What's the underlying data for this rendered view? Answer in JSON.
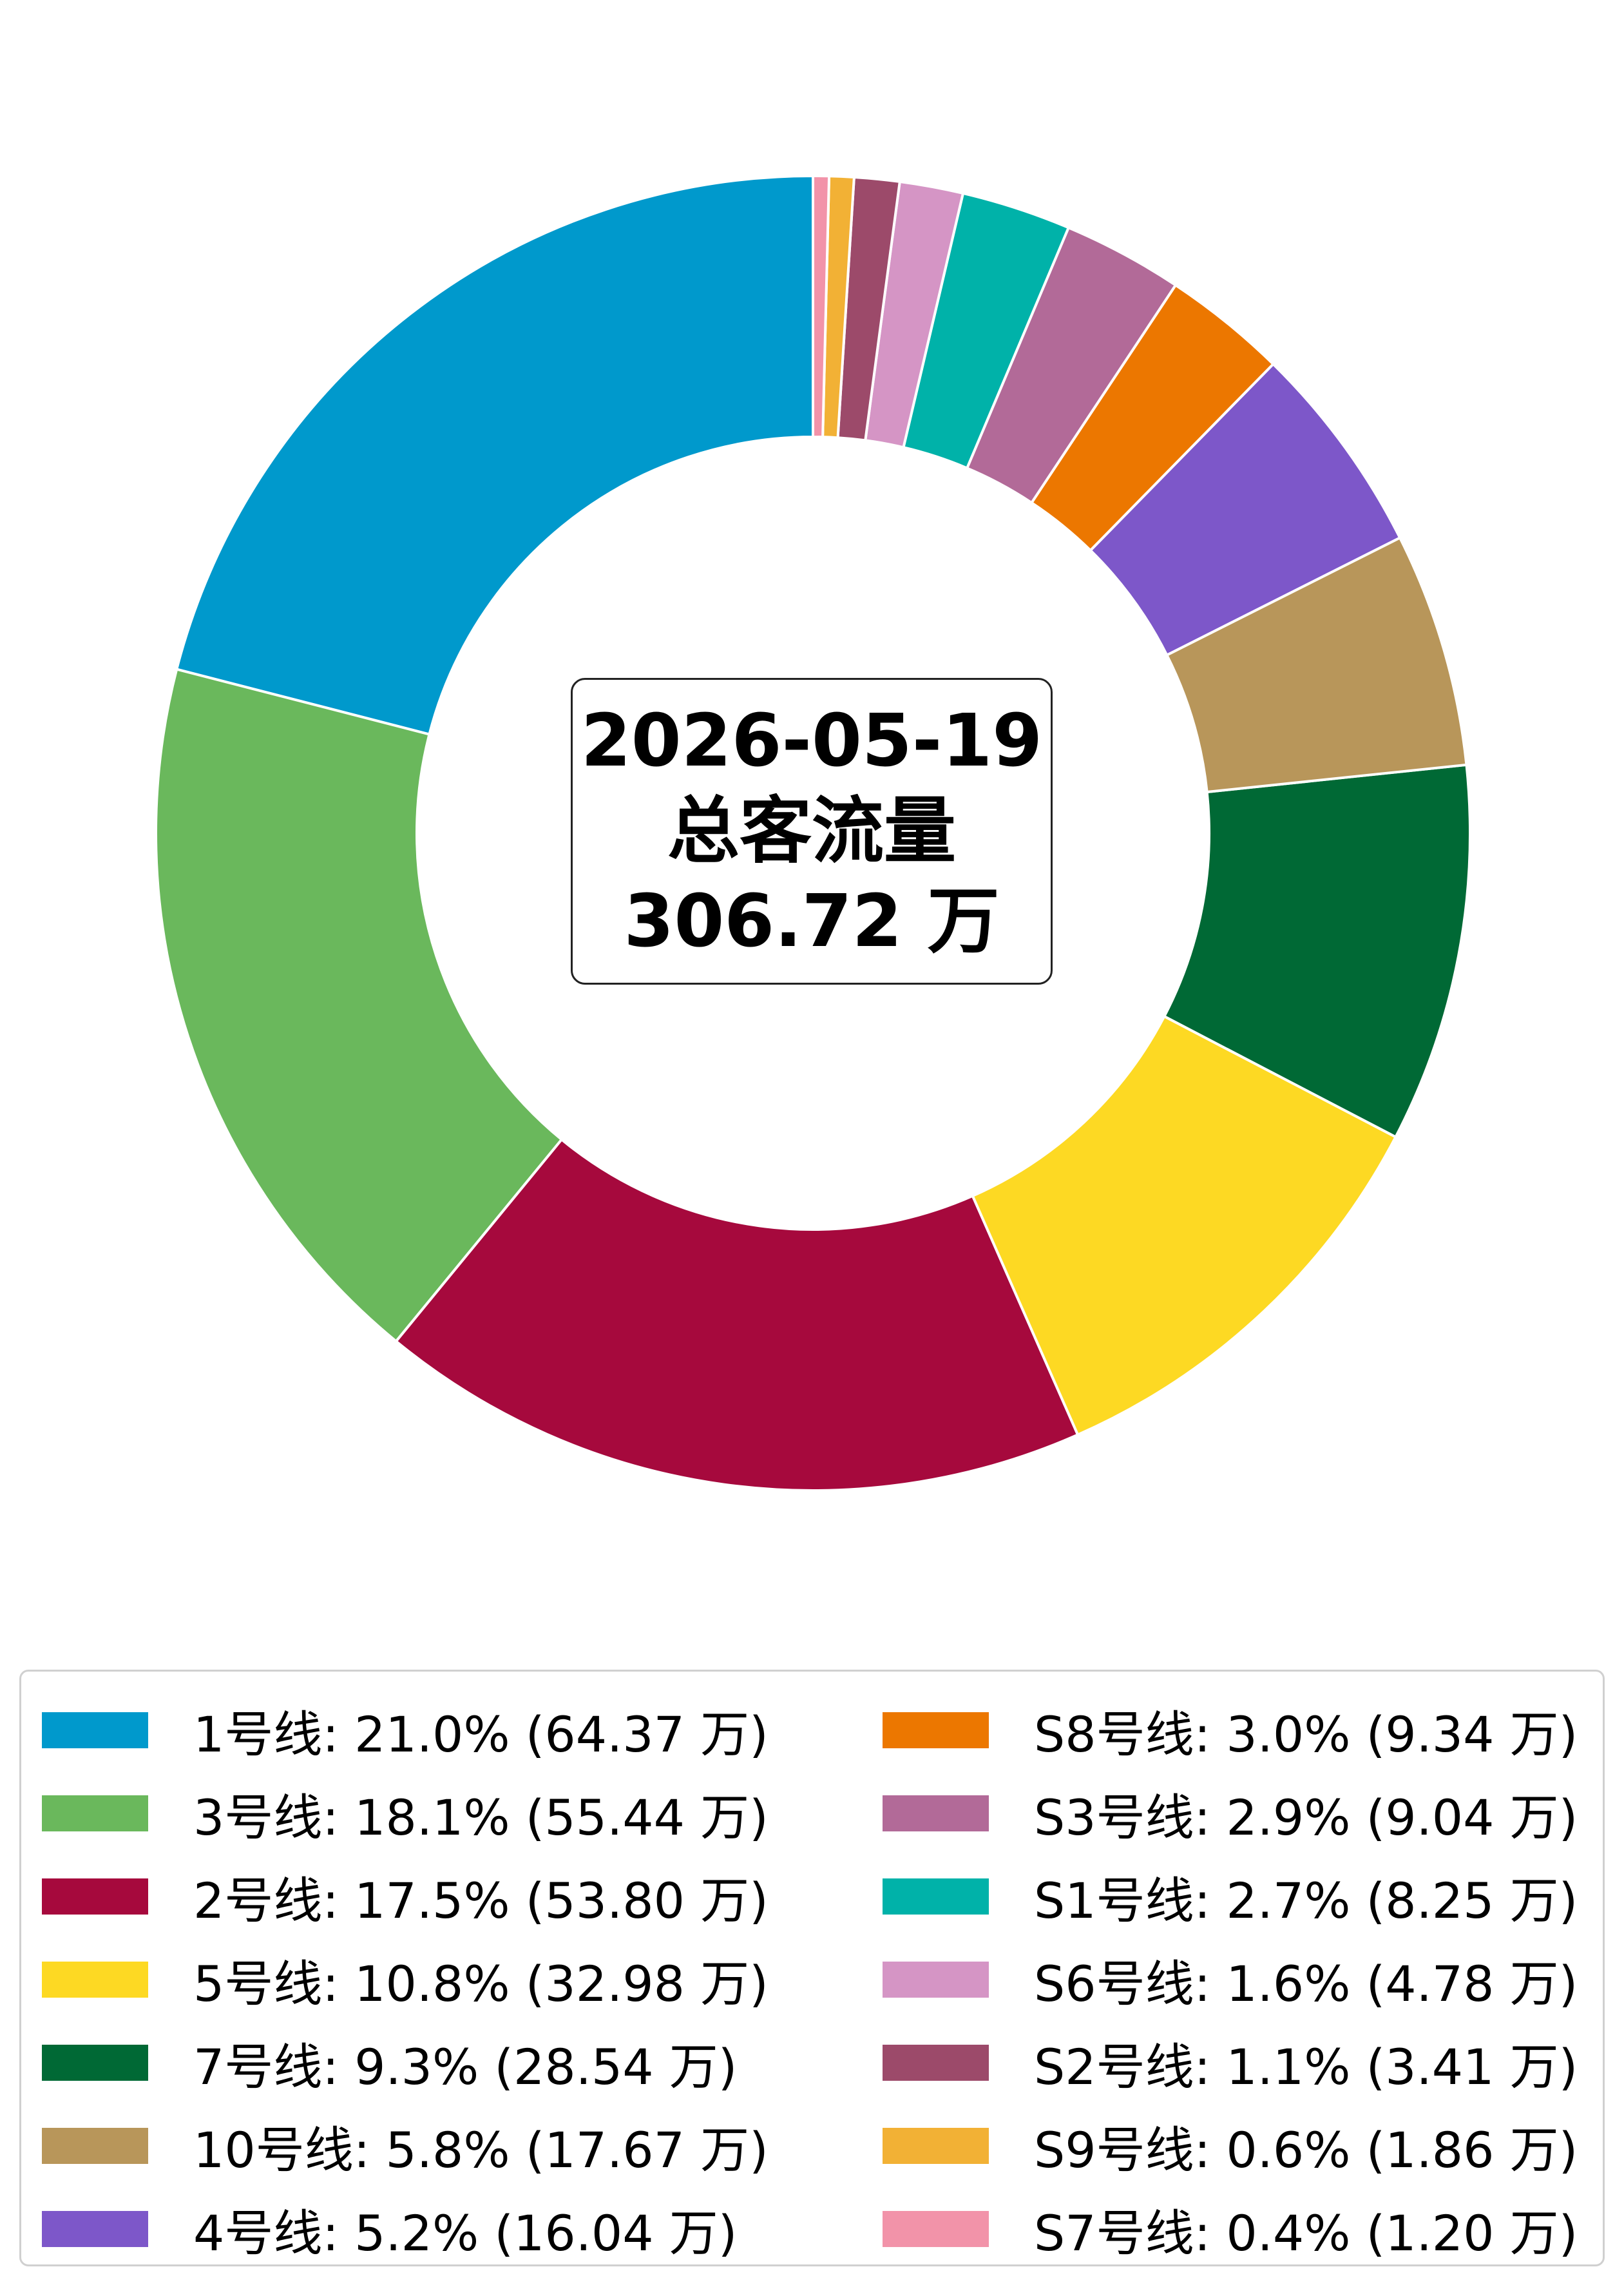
{
  "chart_data": {
    "type": "pie",
    "donut": true,
    "title": "",
    "center_label": {
      "date": "2026-05-19",
      "caption": "总客流量",
      "total": "306.72 万"
    },
    "slices": [
      {
        "name": "1号线",
        "percent": 21.0,
        "value": 64.37,
        "color": "#0099CC",
        "legend_label": "1号线: 21.0% (64.37 万)"
      },
      {
        "name": "3号线",
        "percent": 18.1,
        "value": 55.44,
        "color": "#6AB85C",
        "legend_label": "3号线: 18.1% (55.44 万)"
      },
      {
        "name": "2号线",
        "percent": 17.5,
        "value": 53.8,
        "color": "#A6093D",
        "legend_label": "2号线: 17.5% (53.80 万)"
      },
      {
        "name": "5号线",
        "percent": 10.8,
        "value": 32.98,
        "color": "#FDD923",
        "legend_label": "5号线: 10.8% (32.98 万)"
      },
      {
        "name": "7号线",
        "percent": 9.3,
        "value": 28.54,
        "color": "#006935",
        "legend_label": "7号线: 9.3% (28.54 万)"
      },
      {
        "name": "10号线",
        "percent": 5.8,
        "value": 17.67,
        "color": "#B8965A",
        "legend_label": "10号线: 5.8% (17.67 万)"
      },
      {
        "name": "4号线",
        "percent": 5.2,
        "value": 16.04,
        "color": "#7D57C9",
        "legend_label": "4号线: 5.2% (16.04 万)"
      },
      {
        "name": "S8号线",
        "percent": 3.0,
        "value": 9.34,
        "color": "#EC7700",
        "legend_label": "S8号线: 3.0% (9.34 万)"
      },
      {
        "name": "S3号线",
        "percent": 2.9,
        "value": 9.04,
        "color": "#B26A98",
        "legend_label": "S3号线: 2.9% (9.04 万)"
      },
      {
        "name": "S1号线",
        "percent": 2.7,
        "value": 8.25,
        "color": "#00B2A9",
        "legend_label": "S1号线: 2.7% (8.25 万)"
      },
      {
        "name": "S6号线",
        "percent": 1.6,
        "value": 4.78,
        "color": "#D595C5",
        "legend_label": "S6号线: 1.6% (4.78 万)"
      },
      {
        "name": "S2号线",
        "percent": 1.1,
        "value": 3.41,
        "color": "#9C4A6A",
        "legend_label": "S2号线: 1.1% (3.41 万)"
      },
      {
        "name": "S9号线",
        "percent": 0.6,
        "value": 1.86,
        "color": "#F2B135",
        "legend_label": "S9号线: 0.6% (1.86 万)"
      },
      {
        "name": "S7号线",
        "percent": 0.4,
        "value": 1.2,
        "color": "#F293A9",
        "legend_label": "S7号线: 0.4% (1.20 万)"
      }
    ],
    "legend_placement": "bottom"
  }
}
